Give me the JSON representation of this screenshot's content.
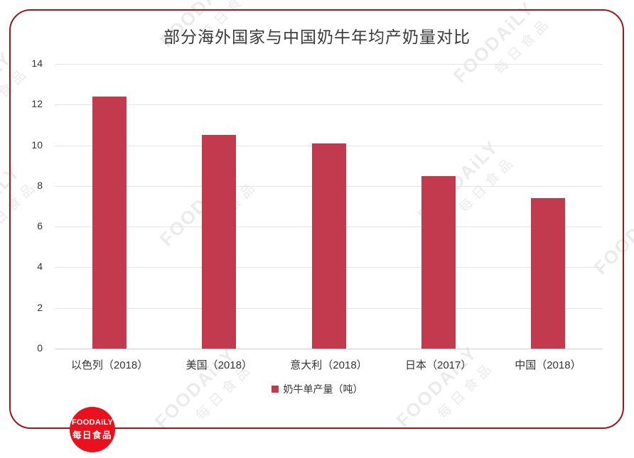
{
  "page": {
    "background": "#ffffff",
    "border_color": "#9e161a"
  },
  "chart_data": {
    "type": "bar",
    "title": "部分海外国家与中国奶牛年均产奶量对比",
    "categories": [
      "以色列（2018）",
      "美国（2018）",
      "意大利（2018）",
      "日本（2017）",
      "中国（2018）"
    ],
    "values": [
      12.4,
      10.5,
      10.1,
      8.5,
      7.4
    ],
    "series_name": "奶牛单产量（吨）",
    "legend": "奶牛单产量（吨）",
    "legend_position": "bottom",
    "yticks": [
      0,
      2,
      4,
      6,
      8,
      10,
      12,
      14
    ],
    "ylim": [
      0,
      14
    ],
    "xlabel": "",
    "ylabel": "",
    "grid": true,
    "bar_color": "#c13a4d",
    "unit": "吨"
  },
  "watermark": {
    "line1": "FOODAiLY",
    "line2": "每日食品",
    "color": "#ebebeb"
  },
  "logo": {
    "line1": "FOODAiLY",
    "line2": "每日食品",
    "color": "#e8111d"
  }
}
